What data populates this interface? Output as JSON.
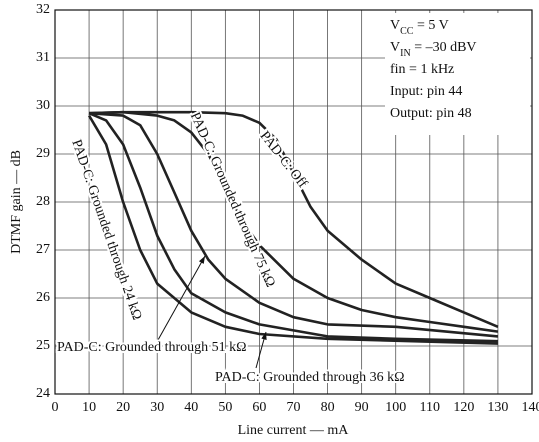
{
  "chart_data": {
    "type": "line",
    "x_label": "Line current — mA",
    "y_label": "DTMF gain — dB",
    "xlim": [
      0,
      140
    ],
    "xticks": [
      0,
      10,
      20,
      30,
      40,
      50,
      60,
      70,
      80,
      90,
      100,
      110,
      120,
      130,
      140
    ],
    "ylim": [
      24,
      32
    ],
    "yticks": [
      24,
      25,
      26,
      27,
      28,
      29,
      30,
      31,
      32
    ],
    "grid": true,
    "conditions": [
      [
        "V",
        "CC",
        " = 5 V"
      ],
      [
        "V",
        "IN",
        " = –30 dBV"
      ],
      "fin = 1 kHz",
      "Input: pin 44",
      "Output: pin 48"
    ],
    "series": [
      {
        "name": "PAD-C: Off",
        "color": "#222222",
        "x": [
          10,
          20,
          30,
          40,
          50,
          55,
          60,
          65,
          70,
          75,
          80,
          90,
          100,
          110,
          120,
          130
        ],
        "values": [
          29.85,
          29.87,
          29.87,
          29.87,
          29.85,
          29.8,
          29.65,
          29.3,
          28.6,
          27.9,
          27.4,
          26.8,
          26.3,
          26.0,
          25.7,
          25.4
        ]
      },
      {
        "name": "PAD-C: Grounded through 75 kΩ",
        "color": "#222222",
        "x": [
          10,
          20,
          30,
          35,
          40,
          45,
          50,
          55,
          60,
          70,
          80,
          90,
          100,
          110,
          120,
          130
        ],
        "values": [
          29.85,
          29.87,
          29.8,
          29.7,
          29.45,
          29.0,
          28.3,
          27.6,
          27.1,
          26.4,
          26.0,
          25.75,
          25.6,
          25.5,
          25.4,
          25.3
        ]
      },
      {
        "name": "PAD-C: Grounded through 51 kΩ",
        "color": "#222222",
        "x": [
          10,
          20,
          25,
          30,
          35,
          40,
          45,
          50,
          60,
          70,
          80,
          100,
          130
        ],
        "values": [
          29.85,
          29.8,
          29.6,
          29.0,
          28.2,
          27.4,
          26.8,
          26.4,
          25.9,
          25.6,
          25.45,
          25.4,
          25.2
        ]
      },
      {
        "name": "PAD-C: Grounded through 36 kΩ",
        "color": "#222222",
        "x": [
          10,
          15,
          20,
          25,
          30,
          35,
          40,
          50,
          60,
          80,
          100,
          130
        ],
        "values": [
          29.85,
          29.7,
          29.2,
          28.3,
          27.3,
          26.6,
          26.1,
          25.7,
          25.45,
          25.2,
          25.15,
          25.1
        ]
      },
      {
        "name": "PAD-C: Grounded through 24 kΩ",
        "color": "#222222",
        "x": [
          10,
          15,
          20,
          25,
          30,
          40,
          50,
          60,
          80,
          130
        ],
        "values": [
          29.8,
          29.2,
          28.0,
          27.0,
          26.3,
          25.7,
          25.4,
          25.25,
          25.15,
          25.05
        ]
      }
    ]
  }
}
